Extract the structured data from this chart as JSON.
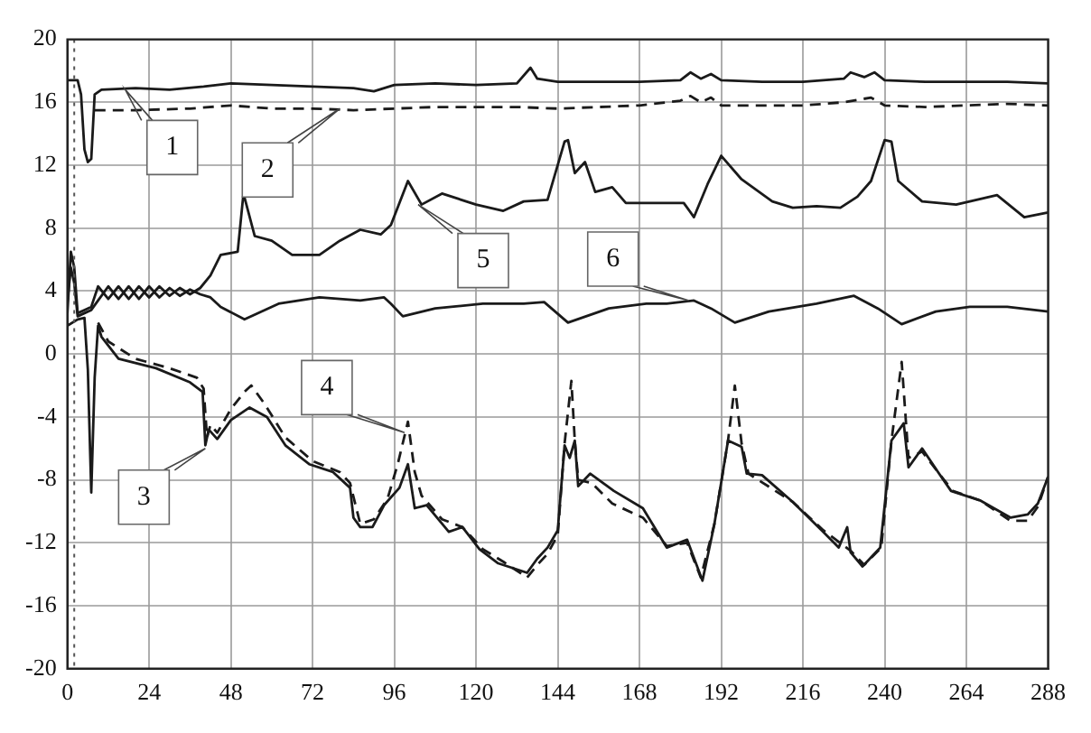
{
  "chart_data": {
    "type": "line",
    "xlim": [
      0,
      288
    ],
    "ylim": [
      -20,
      20
    ],
    "xticks": [
      0,
      24,
      48,
      72,
      96,
      120,
      144,
      168,
      192,
      216,
      240,
      264,
      288
    ],
    "yticks": [
      -20,
      -16,
      -12,
      -8,
      -4,
      0,
      4,
      8,
      12,
      16,
      20
    ],
    "grid": true,
    "legend": false,
    "marker": "none",
    "ref_lines": [
      {
        "axis": "x",
        "value": 2,
        "line_style": "dotted",
        "color": "#555555"
      }
    ],
    "annotations": [
      {
        "text": "1",
        "x": 17,
        "y": 16.8
      },
      {
        "text": "2",
        "x": 80,
        "y": 15.6
      },
      {
        "text": "3",
        "x": 40.5,
        "y": -6
      },
      {
        "text": "4",
        "x": 99,
        "y": -5
      },
      {
        "text": "5",
        "x": 103,
        "y": 9.5
      },
      {
        "text": "6",
        "x": 182.5,
        "y": 3.4
      }
    ],
    "series": [
      {
        "color": "#1a1a1a",
        "line_style": "solid",
        "x": [
          0,
          3,
          4,
          5,
          6,
          7,
          8,
          10,
          20,
          30,
          40,
          48,
          60,
          72,
          84,
          90,
          96,
          108,
          120,
          132,
          136,
          138,
          144,
          156,
          168,
          180,
          183,
          186,
          189,
          192,
          204,
          216,
          228,
          230,
          234,
          237,
          240,
          252,
          264,
          276,
          288
        ],
        "values": [
          17.4,
          17.4,
          16.5,
          13,
          12.2,
          12.4,
          16.5,
          16.8,
          16.9,
          16.8,
          17,
          17.2,
          17.1,
          17,
          16.9,
          16.7,
          17.1,
          17.2,
          17.1,
          17.2,
          18.2,
          17.5,
          17.3,
          17.3,
          17.3,
          17.4,
          17.9,
          17.5,
          17.8,
          17.4,
          17.3,
          17.3,
          17.5,
          17.9,
          17.6,
          17.9,
          17.4,
          17.3,
          17.3,
          17.3,
          17.2
        ]
      },
      {
        "color": "#1a1a1a",
        "line_style": "dashed",
        "x": [
          8,
          20,
          36,
          48,
          60,
          72,
          84,
          96,
          108,
          120,
          132,
          144,
          156,
          168,
          180,
          183,
          186,
          189,
          192,
          204,
          216,
          228,
          236,
          240,
          252,
          264,
          276,
          288
        ],
        "values": [
          15.5,
          15.5,
          15.6,
          15.8,
          15.6,
          15.6,
          15.5,
          15.6,
          15.7,
          15.7,
          15.7,
          15.6,
          15.7,
          15.8,
          16.1,
          16.4,
          16,
          16.3,
          15.8,
          15.8,
          15.8,
          16,
          16.3,
          15.8,
          15.7,
          15.8,
          15.9,
          15.8
        ]
      },
      {
        "color": "#1a1a1a",
        "line_style": "solid",
        "x": [
          0,
          3,
          5,
          6,
          7,
          8,
          9,
          10,
          15,
          26,
          36,
          39.7,
          40.5,
          41.5,
          44,
          48,
          53.5,
          58.6,
          64,
          71,
          78,
          83,
          84,
          86,
          89.6,
          93,
          97.5,
          100,
          102,
          105.5,
          112,
          116,
          121,
          126.5,
          135,
          138,
          141,
          144,
          146,
          147.5,
          149,
          150,
          153.5,
          160.5,
          169,
          176,
          182,
          186.5,
          190,
          194,
          198,
          199.5,
          204,
          213,
          221.5,
          226.5,
          229,
          230,
          233.5,
          238.7,
          242,
          245.6,
          247,
          251,
          256,
          259.5,
          268,
          277,
          282,
          285,
          288
        ],
        "values": [
          1.8,
          2.2,
          2.3,
          -1,
          -8.8,
          -1.5,
          1.8,
          1.1,
          -0.3,
          -0.9,
          -1.8,
          -2.4,
          -5.8,
          -4.8,
          -5.4,
          -4.2,
          -3.4,
          -4,
          -5.8,
          -7,
          -7.5,
          -8.5,
          -10.4,
          -11,
          -11,
          -9.6,
          -8.5,
          -7,
          -9.8,
          -9.6,
          -11.3,
          -11,
          -12.4,
          -13.3,
          -13.9,
          -13,
          -12.3,
          -11.2,
          -5.8,
          -6.6,
          -5.5,
          -8.4,
          -7.6,
          -8.7,
          -9.8,
          -12.3,
          -11.8,
          -14.4,
          -10.8,
          -5.5,
          -5.9,
          -7.6,
          -7.7,
          -9.4,
          -11.2,
          -12.3,
          -11,
          -12.6,
          -13.5,
          -12.3,
          -5.5,
          -4.4,
          -7.2,
          -6,
          -7.6,
          -8.7,
          -9.3,
          -10.4,
          -10.2,
          -9.5,
          -7.8
        ]
      },
      {
        "color": "#1a1a1a",
        "line_style": "dashed",
        "x": [
          9,
          12,
          20,
          30,
          38,
          40,
          41,
          42,
          44,
          48,
          52,
          54,
          58,
          64,
          72,
          80,
          83,
          86,
          90,
          94,
          97,
          100,
          102,
          104,
          110,
          116,
          122,
          128,
          135,
          138,
          141,
          144,
          146,
          148,
          149,
          150,
          154,
          160,
          169,
          176,
          182,
          186,
          190,
          194,
          196,
          198,
          200,
          213,
          222,
          230,
          234,
          239,
          242,
          245,
          247,
          251,
          256,
          260,
          268,
          277,
          282,
          285,
          288
        ],
        "values": [
          2,
          0.8,
          -0.3,
          -0.9,
          -1.5,
          -2.2,
          -5.3,
          -4.5,
          -5,
          -3.5,
          -2.4,
          -2,
          -3.2,
          -5.3,
          -6.8,
          -7.5,
          -8.2,
          -10.8,
          -10.5,
          -9.2,
          -7,
          -4.3,
          -7.5,
          -9,
          -10.5,
          -11,
          -12.4,
          -13.2,
          -14.2,
          -13.4,
          -12.7,
          -11.5,
          -5.7,
          -1.7,
          -5.5,
          -8,
          -8.2,
          -9.5,
          -10.4,
          -12.2,
          -12,
          -14.2,
          -10.8,
          -5.5,
          -2,
          -5.7,
          -7.6,
          -9.4,
          -11.2,
          -12.5,
          -13.4,
          -12.3,
          -5.5,
          -0.5,
          -6.6,
          -6.2,
          -7.6,
          -8.7,
          -9.3,
          -10.6,
          -10.6,
          -9.7,
          -7.8
        ]
      },
      {
        "color": "#1a1a1a",
        "line_style": "solid",
        "x": [
          0,
          1,
          2,
          3,
          5,
          7,
          9,
          12,
          15,
          18,
          21,
          24,
          27,
          30,
          33,
          36,
          39,
          42,
          45,
          50,
          51.7,
          55,
          60,
          66,
          74,
          80,
          86,
          92,
          95,
          100,
          104,
          110,
          120,
          128,
          134,
          141,
          146,
          147,
          149,
          152,
          155,
          160,
          164,
          172,
          181,
          184,
          188,
          192,
          198,
          207,
          213,
          220,
          227,
          232,
          236,
          240,
          242,
          244,
          251,
          261,
          273,
          281,
          288
        ],
        "values": [
          2.6,
          6.5,
          5.5,
          2.6,
          2.8,
          3,
          4.3,
          3.5,
          4.3,
          3.5,
          4.3,
          3.6,
          4.3,
          3.7,
          4.2,
          3.8,
          4.2,
          5,
          6.3,
          6.5,
          10.2,
          7.5,
          7.2,
          6.3,
          6.3,
          7.2,
          7.9,
          7.6,
          8.2,
          11,
          9.5,
          10.2,
          9.5,
          9.1,
          9.7,
          9.8,
          13.5,
          13.6,
          11.5,
          12.2,
          10.3,
          10.6,
          9.6,
          9.6,
          9.6,
          8.7,
          10.8,
          12.6,
          11.1,
          9.7,
          9.3,
          9.4,
          9.3,
          10,
          11,
          13.6,
          13.5,
          11,
          9.7,
          9.5,
          10.1,
          8.7,
          9
        ]
      },
      {
        "color": "#1a1a1a",
        "line_style": "solid",
        "x": [
          0,
          1,
          2,
          3,
          5,
          7,
          9,
          12,
          15,
          18,
          21,
          24,
          27,
          30,
          33,
          36,
          39,
          42,
          45,
          52,
          62,
          74,
          86,
          93,
          95,
          98.5,
          108,
          122,
          134,
          140,
          147,
          159,
          170,
          176,
          184,
          189,
          196,
          206,
          220,
          231,
          238,
          245,
          255,
          265,
          276,
          288
        ],
        "values": [
          3.3,
          5.5,
          4.5,
          2.4,
          2.6,
          2.8,
          3.4,
          4.3,
          3.5,
          4.3,
          3.5,
          4.3,
          3.6,
          4.2,
          3.7,
          4.1,
          3.8,
          3.6,
          3,
          2.2,
          3.2,
          3.6,
          3.4,
          3.6,
          3.2,
          2.4,
          2.9,
          3.2,
          3.2,
          3.3,
          2,
          2.9,
          3.2,
          3.2,
          3.4,
          2.9,
          2,
          2.7,
          3.2,
          3.7,
          2.9,
          1.9,
          2.7,
          3,
          3,
          2.7
        ]
      }
    ]
  }
}
